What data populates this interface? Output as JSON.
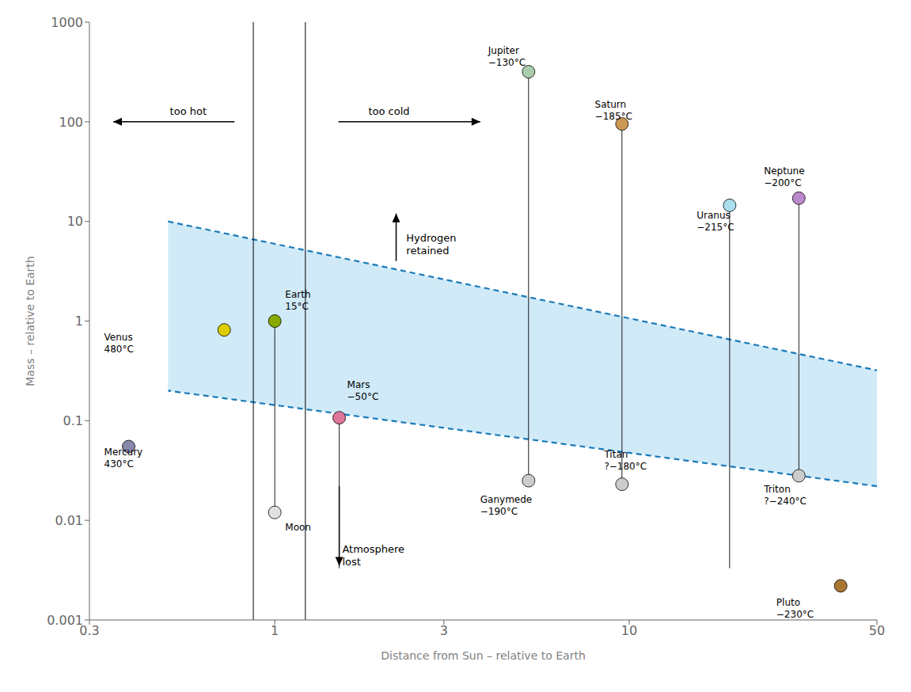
{
  "chart_data": {
    "type": "scatter",
    "xlabel": "Distance from Sun – relative to Earth",
    "ylabel": "Mass – relative to Earth",
    "log": true,
    "grid": false,
    "xlim": [
      0.3,
      50
    ],
    "ylim": [
      0.001,
      1000
    ],
    "xticks": [
      0.3,
      1,
      3,
      10,
      50
    ],
    "yticks": [
      0.001,
      0.01,
      0.1,
      1,
      10,
      100,
      1000
    ],
    "points": [
      {
        "name": "Mercury",
        "temp": "430°C",
        "x": 0.387,
        "y": 0.055,
        "color": "#8888aa",
        "label_x": 0.33,
        "label_y": 0.042
      },
      {
        "name": "Venus",
        "temp": "480°C",
        "x": 0.72,
        "y": 0.815,
        "color": "#ddcc00",
        "label_x": 0.33,
        "label_y": 0.6
      },
      {
        "name": "Earth",
        "temp": "15°C",
        "x": 1.0,
        "y": 1.0,
        "color": "#88aa00",
        "label_x": 1.07,
        "label_y": 1.6
      },
      {
        "name": "Moon",
        "x": 1.0,
        "y": 0.012,
        "color": "#e0e0e0",
        "label_x": 1.07,
        "label_y": 0.0085
      },
      {
        "name": "Mars",
        "temp": "−50°C",
        "x": 1.52,
        "y": 0.107,
        "color": "#dd7799",
        "label_x": 1.6,
        "label_y": 0.2
      },
      {
        "name": "Jupiter",
        "temp": "−130°C",
        "x": 5.2,
        "y": 318.0,
        "color": "#aaccaa",
        "label_x": 4.0,
        "label_y": 450
      },
      {
        "name": "Ganymede",
        "temp": "−190°C",
        "x": 5.2,
        "y": 0.025,
        "color": "#cccccc",
        "label_x": 3.8,
        "label_y": 0.014
      },
      {
        "name": "Saturn",
        "temp": "−185°C",
        "x": 9.54,
        "y": 95.2,
        "color": "#cc9955",
        "label_x": 8.0,
        "label_y": 130
      },
      {
        "name": "Titan",
        "temp": "?−180°C",
        "x": 9.54,
        "y": 0.023,
        "color": "#cccccc",
        "label_x": 8.5,
        "label_y": 0.04
      },
      {
        "name": "Uranus",
        "temp": "−215°C",
        "x": 19.2,
        "y": 14.5,
        "color": "#aaddee",
        "label_x": 15.5,
        "label_y": 10.0
      },
      {
        "name": "Neptune",
        "temp": "−200°C",
        "x": 30.1,
        "y": 17.1,
        "color": "#bb88cc",
        "label_x": 24.0,
        "label_y": 28
      },
      {
        "name": "Triton",
        "temp": "?−240°C",
        "x": 30.1,
        "y": 0.028,
        "color": "#cccccc",
        "label_x": 24.0,
        "label_y": 0.018
      },
      {
        "name": "Pluto",
        "temp": "−230°C",
        "x": 39.5,
        "y": 0.0022,
        "color": "#aa7733",
        "label_x": 26.0,
        "label_y": 0.0013
      }
    ],
    "region": {
      "x": [
        0.5,
        50.0,
        50.0,
        0.5
      ],
      "y": [
        10.0,
        0.32,
        0.022,
        0.2
      ],
      "color": "#d0eaf8",
      "edge_color": "#1a7ab8"
    },
    "vlines": [
      0.87,
      1.22
    ],
    "drop_lines": [
      {
        "x": 1.0,
        "y_top": 1.0,
        "y_bot": 0.012
      },
      {
        "x": 1.52,
        "y_top": 0.107,
        "y_bot": 0.0033
      },
      {
        "x": 5.2,
        "y_top": 318.0,
        "y_bot": 0.025
      },
      {
        "x": 9.54,
        "y_top": 95.2,
        "y_bot": 0.023
      },
      {
        "x": 19.2,
        "y_top": 14.5,
        "y_bot": 0.0033
      },
      {
        "x": 30.1,
        "y_top": 17.1,
        "y_bot": 0.028
      }
    ],
    "annotations": [
      {
        "text": "too hot",
        "x": 0.57,
        "y": 100,
        "arrow_from": [
          0.7695,
          100
        ],
        "arrow_to": [
          0.35,
          100
        ]
      },
      {
        "text": "too cold",
        "x": 2.1,
        "y": 100,
        "arrow_from": [
          1.512,
          100
        ],
        "arrow_to": [
          3.8,
          100
        ]
      },
      {
        "text": "Hydrogen\nretained",
        "x": 2.35,
        "y": 6.0,
        "arrow_from": [
          2.2,
          4.0
        ],
        "arrow_to": [
          2.2,
          12.0
        ]
      },
      {
        "text": "Atmosphere\nlost",
        "x": 1.55,
        "y": 0.006,
        "arrow_from": [
          1.52,
          0.022
        ],
        "arrow_to": [
          1.52,
          0.0035
        ]
      }
    ]
  }
}
